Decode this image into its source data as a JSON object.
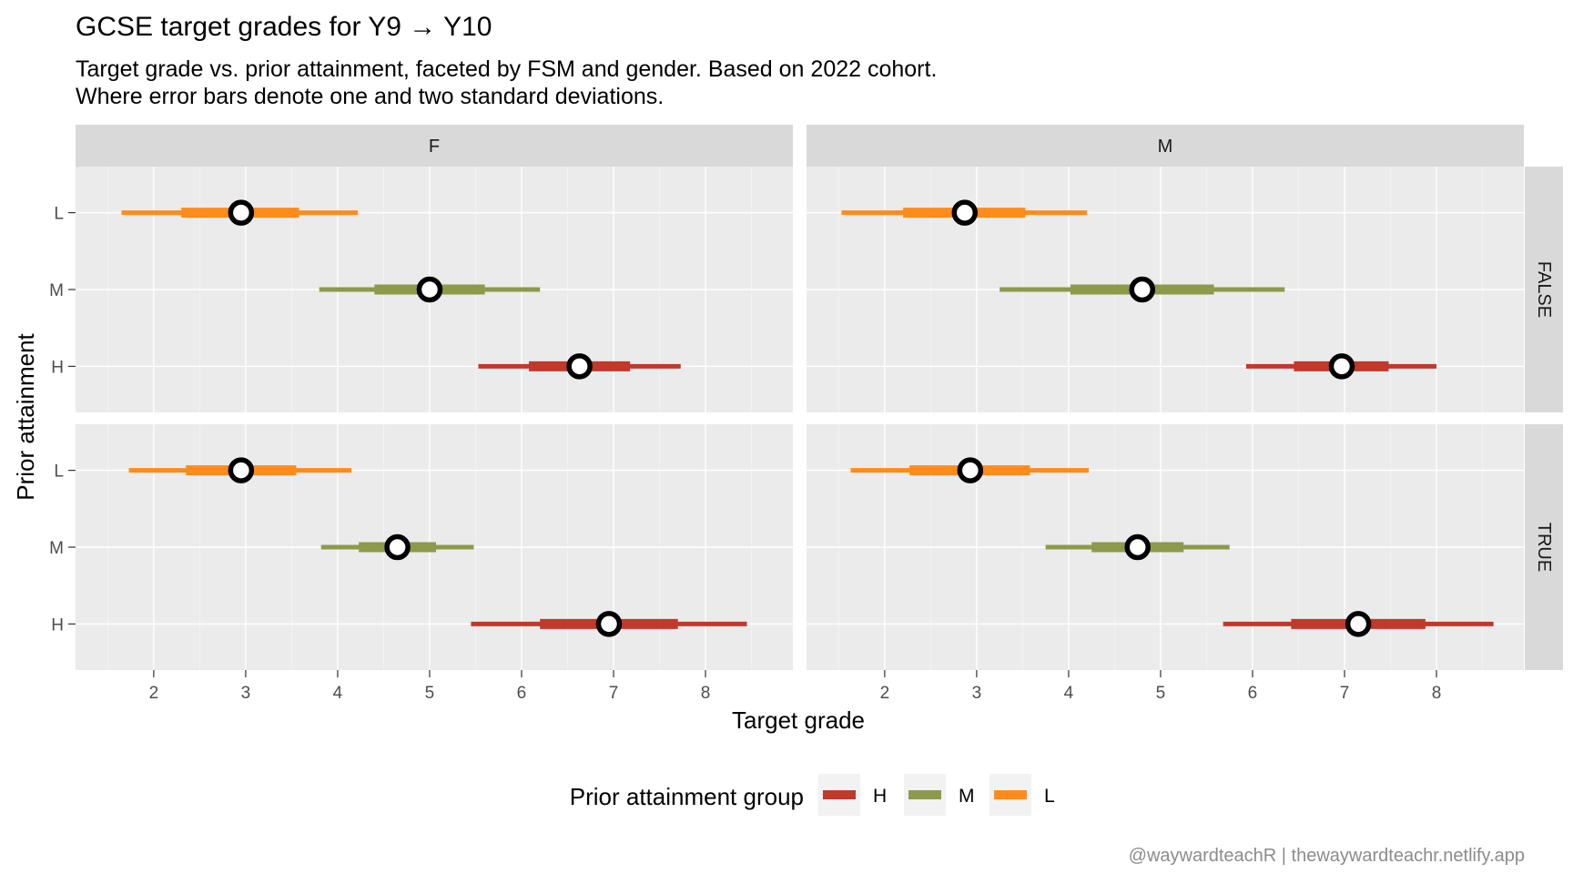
{
  "chart_data": {
    "type": "scatter",
    "title": "GCSE target grades for Y9 → Y10",
    "subtitle_lines": [
      "Target grade vs. prior attainment, faceted by FSM and gender.  Based on 2022 cohort.",
      "Where error bars denote one and two standard deviations."
    ],
    "xlabel": "Target grade",
    "ylabel": "Prior attainment",
    "xlim": [
      1.15,
      8.95
    ],
    "x_ticks": [
      2,
      3,
      4,
      5,
      6,
      7,
      8
    ],
    "y_categories": [
      "L",
      "M",
      "H"
    ],
    "facet_cols": [
      "F",
      "M"
    ],
    "facet_rows": [
      "FALSE",
      "TRUE"
    ],
    "grid": true,
    "legend": {
      "title": "Prior attainment group",
      "position": "bottom",
      "items": [
        {
          "key": "H",
          "label": "H",
          "color": "#c0392b"
        },
        {
          "key": "M",
          "label": "M",
          "color": "#8c9a4a"
        },
        {
          "key": "L",
          "label": "L",
          "color": "#ff8c1a"
        }
      ]
    },
    "caption": "@waywardteachR | thewaywardteachr.netlify.app",
    "points": [
      {
        "gender": "F",
        "fsm": "FALSE",
        "group": "L",
        "mean": 2.95,
        "sd1": [
          2.3,
          3.58
        ],
        "sd2": [
          1.65,
          4.22
        ]
      },
      {
        "gender": "F",
        "fsm": "FALSE",
        "group": "M",
        "mean": 5.0,
        "sd1": [
          4.4,
          5.6
        ],
        "sd2": [
          3.8,
          6.2
        ]
      },
      {
        "gender": "F",
        "fsm": "FALSE",
        "group": "H",
        "mean": 6.63,
        "sd1": [
          6.08,
          7.18
        ],
        "sd2": [
          5.53,
          7.73
        ]
      },
      {
        "gender": "M",
        "fsm": "FALSE",
        "group": "L",
        "mean": 2.87,
        "sd1": [
          2.2,
          3.53
        ],
        "sd2": [
          1.53,
          4.2
        ]
      },
      {
        "gender": "M",
        "fsm": "FALSE",
        "group": "M",
        "mean": 4.8,
        "sd1": [
          4.02,
          5.58
        ],
        "sd2": [
          3.25,
          6.35
        ]
      },
      {
        "gender": "M",
        "fsm": "FALSE",
        "group": "H",
        "mean": 6.97,
        "sd1": [
          6.45,
          7.48
        ],
        "sd2": [
          5.93,
          8.0
        ]
      },
      {
        "gender": "F",
        "fsm": "TRUE",
        "group": "L",
        "mean": 2.95,
        "sd1": [
          2.35,
          3.55
        ],
        "sd2": [
          1.73,
          4.15
        ]
      },
      {
        "gender": "F",
        "fsm": "TRUE",
        "group": "M",
        "mean": 4.65,
        "sd1": [
          4.23,
          5.07
        ],
        "sd2": [
          3.82,
          5.48
        ]
      },
      {
        "gender": "F",
        "fsm": "TRUE",
        "group": "H",
        "mean": 6.95,
        "sd1": [
          6.2,
          7.7
        ],
        "sd2": [
          5.45,
          8.45
        ]
      },
      {
        "gender": "M",
        "fsm": "TRUE",
        "group": "L",
        "mean": 2.93,
        "sd1": [
          2.27,
          3.58
        ],
        "sd2": [
          1.63,
          4.22
        ]
      },
      {
        "gender": "M",
        "fsm": "TRUE",
        "group": "M",
        "mean": 4.75,
        "sd1": [
          4.25,
          5.25
        ],
        "sd2": [
          3.75,
          5.75
        ]
      },
      {
        "gender": "M",
        "fsm": "TRUE",
        "group": "H",
        "mean": 7.15,
        "sd1": [
          6.42,
          7.88
        ],
        "sd2": [
          5.68,
          8.62
        ]
      }
    ]
  }
}
